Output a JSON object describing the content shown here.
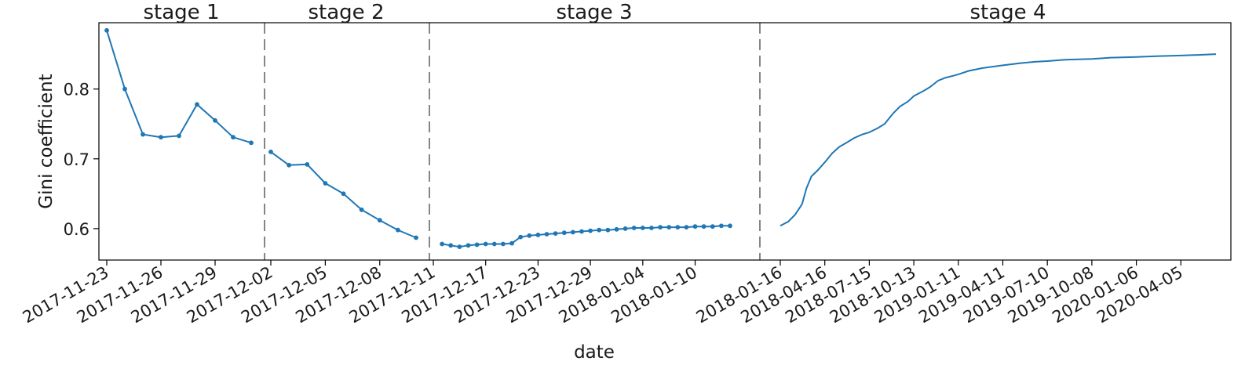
{
  "chart_data": {
    "type": "line",
    "xlabel": "date",
    "ylabel": "Gini coefficient",
    "ylim": [
      0.555,
      0.895
    ],
    "y_ticks": [
      "0.6",
      "0.7",
      "0.8"
    ],
    "line_color": "#1f77b4",
    "grid": false,
    "x_tick_labels": [
      "2017-11-23",
      "2017-11-26",
      "2017-11-29",
      "2017-12-02",
      "2017-12-05",
      "2017-12-08",
      "2017-12-11",
      "2017-12-17",
      "2017-12-23",
      "2017-12-29",
      "2018-01-04",
      "2018-01-10",
      "2018-01-16",
      "2018-04-16",
      "2018-07-15",
      "2018-10-13",
      "2019-01-11",
      "2019-04-11",
      "2019-07-10",
      "2019-10-08",
      "2020-01-06",
      "2020-04-05"
    ],
    "stages": [
      {
        "label": "stage 1",
        "markers": true,
        "x": [
          "2017-11-23",
          "2017-11-24",
          "2017-11-25",
          "2017-11-26",
          "2017-11-27",
          "2017-11-28",
          "2017-11-29",
          "2017-11-30",
          "2017-12-01"
        ],
        "y": [
          0.884,
          0.8,
          0.735,
          0.731,
          0.733,
          0.778,
          0.755,
          0.731,
          0.723
        ]
      },
      {
        "label": "stage 2",
        "markers": true,
        "x": [
          "2017-12-02",
          "2017-12-03",
          "2017-12-04",
          "2017-12-05",
          "2017-12-06",
          "2017-12-07",
          "2017-12-08",
          "2017-12-09",
          "2017-12-10"
        ],
        "y": [
          0.71,
          0.691,
          0.692,
          0.665,
          0.65,
          0.627,
          0.612,
          0.598,
          0.587
        ]
      },
      {
        "label": "stage 3",
        "markers": true,
        "x": [
          "2017-12-12",
          "2017-12-13",
          "2017-12-14",
          "2017-12-15",
          "2017-12-16",
          "2017-12-17",
          "2017-12-18",
          "2017-12-19",
          "2017-12-20",
          "2017-12-21",
          "2017-12-22",
          "2017-12-23",
          "2017-12-24",
          "2017-12-25",
          "2017-12-26",
          "2017-12-27",
          "2017-12-28",
          "2017-12-29",
          "2017-12-30",
          "2017-12-31",
          "2018-01-01",
          "2018-01-02",
          "2018-01-03",
          "2018-01-04",
          "2018-01-05",
          "2018-01-06",
          "2018-01-07",
          "2018-01-08",
          "2018-01-09",
          "2018-01-10",
          "2018-01-11",
          "2018-01-12",
          "2018-01-13",
          "2018-01-14"
        ],
        "y": [
          0.578,
          0.576,
          0.574,
          0.576,
          0.577,
          0.578,
          0.578,
          0.578,
          0.579,
          0.588,
          0.59,
          0.591,
          0.592,
          0.593,
          0.594,
          0.595,
          0.596,
          0.597,
          0.598,
          0.598,
          0.599,
          0.6,
          0.601,
          0.601,
          0.601,
          0.602,
          0.602,
          0.602,
          0.602,
          0.603,
          0.603,
          0.603,
          0.604,
          0.604
        ]
      },
      {
        "label": "stage 4",
        "markers": false,
        "x": [
          "2018-01-16",
          "2018-02-01",
          "2018-02-15",
          "2018-03-01",
          "2018-03-10",
          "2018-03-20",
          "2018-04-01",
          "2018-04-16",
          "2018-05-01",
          "2018-05-15",
          "2018-06-01",
          "2018-06-15",
          "2018-07-01",
          "2018-07-15",
          "2018-08-01",
          "2018-08-15",
          "2018-09-01",
          "2018-09-15",
          "2018-10-01",
          "2018-10-13",
          "2018-11-01",
          "2018-11-15",
          "2018-12-01",
          "2018-12-15",
          "2019-01-01",
          "2019-01-11",
          "2019-02-01",
          "2019-03-01",
          "2019-04-11",
          "2019-05-15",
          "2019-06-15",
          "2019-07-10",
          "2019-08-15",
          "2019-10-08",
          "2019-11-15",
          "2020-01-06",
          "2020-02-15",
          "2020-04-05",
          "2020-05-15",
          "2020-06-15"
        ],
        "y": [
          0.604,
          0.61,
          0.62,
          0.635,
          0.658,
          0.675,
          0.683,
          0.695,
          0.708,
          0.717,
          0.724,
          0.73,
          0.735,
          0.738,
          0.744,
          0.75,
          0.765,
          0.775,
          0.782,
          0.79,
          0.797,
          0.803,
          0.812,
          0.816,
          0.819,
          0.821,
          0.826,
          0.83,
          0.834,
          0.837,
          0.839,
          0.84,
          0.842,
          0.843,
          0.845,
          0.846,
          0.847,
          0.848,
          0.849,
          0.85
        ]
      }
    ]
  }
}
